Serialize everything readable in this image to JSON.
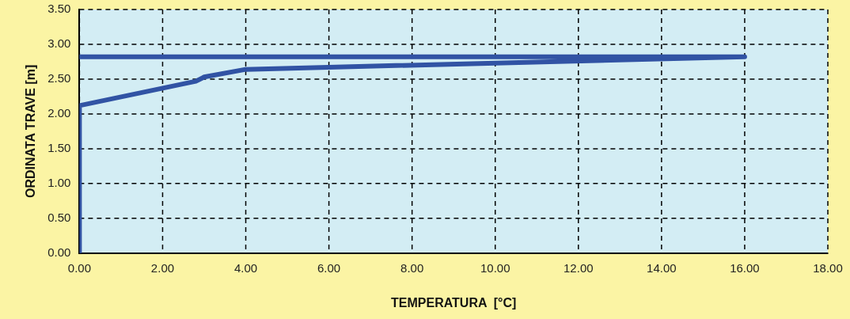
{
  "chart_data": {
    "type": "line",
    "xlabel": "TEMPERATURA  [°C]",
    "ylabel": "ORDINATA TRAVE [m]",
    "series": [
      {
        "color": "#3153a4",
        "x": [
          0,
          0,
          2.8,
          3.0,
          4,
          16,
          0
        ],
        "values": [
          0,
          2.12,
          2.47,
          2.53,
          2.64,
          2.82,
          2.82
        ]
      }
    ],
    "xlim": [
      0,
      18
    ],
    "ylim": [
      0,
      3.5
    ],
    "xticks": [
      {
        "value": 0,
        "label": "0.00"
      },
      {
        "value": 2,
        "label": "2.00"
      },
      {
        "value": 4,
        "label": "4.00"
      },
      {
        "value": 6,
        "label": "6.00"
      },
      {
        "value": 8,
        "label": "8.00"
      },
      {
        "value": 10,
        "label": "10.00"
      },
      {
        "value": 12,
        "label": "12.00"
      },
      {
        "value": 14,
        "label": "14.00"
      },
      {
        "value": 16,
        "label": "16.00"
      },
      {
        "value": 18,
        "label": "18.00"
      }
    ],
    "yticks": [
      {
        "value": 0,
        "label": "0.00"
      },
      {
        "value": 0.5,
        "label": "0.50"
      },
      {
        "value": 1,
        "label": "1.00"
      },
      {
        "value": 1.5,
        "label": "1.50"
      },
      {
        "value": 2,
        "label": "2.00"
      },
      {
        "value": 2.5,
        "label": "2.50"
      },
      {
        "value": 3,
        "label": "3.00"
      },
      {
        "value": 3.5,
        "label": "3.50"
      }
    ],
    "grid": true,
    "line_style": "solid",
    "legend": false
  }
}
